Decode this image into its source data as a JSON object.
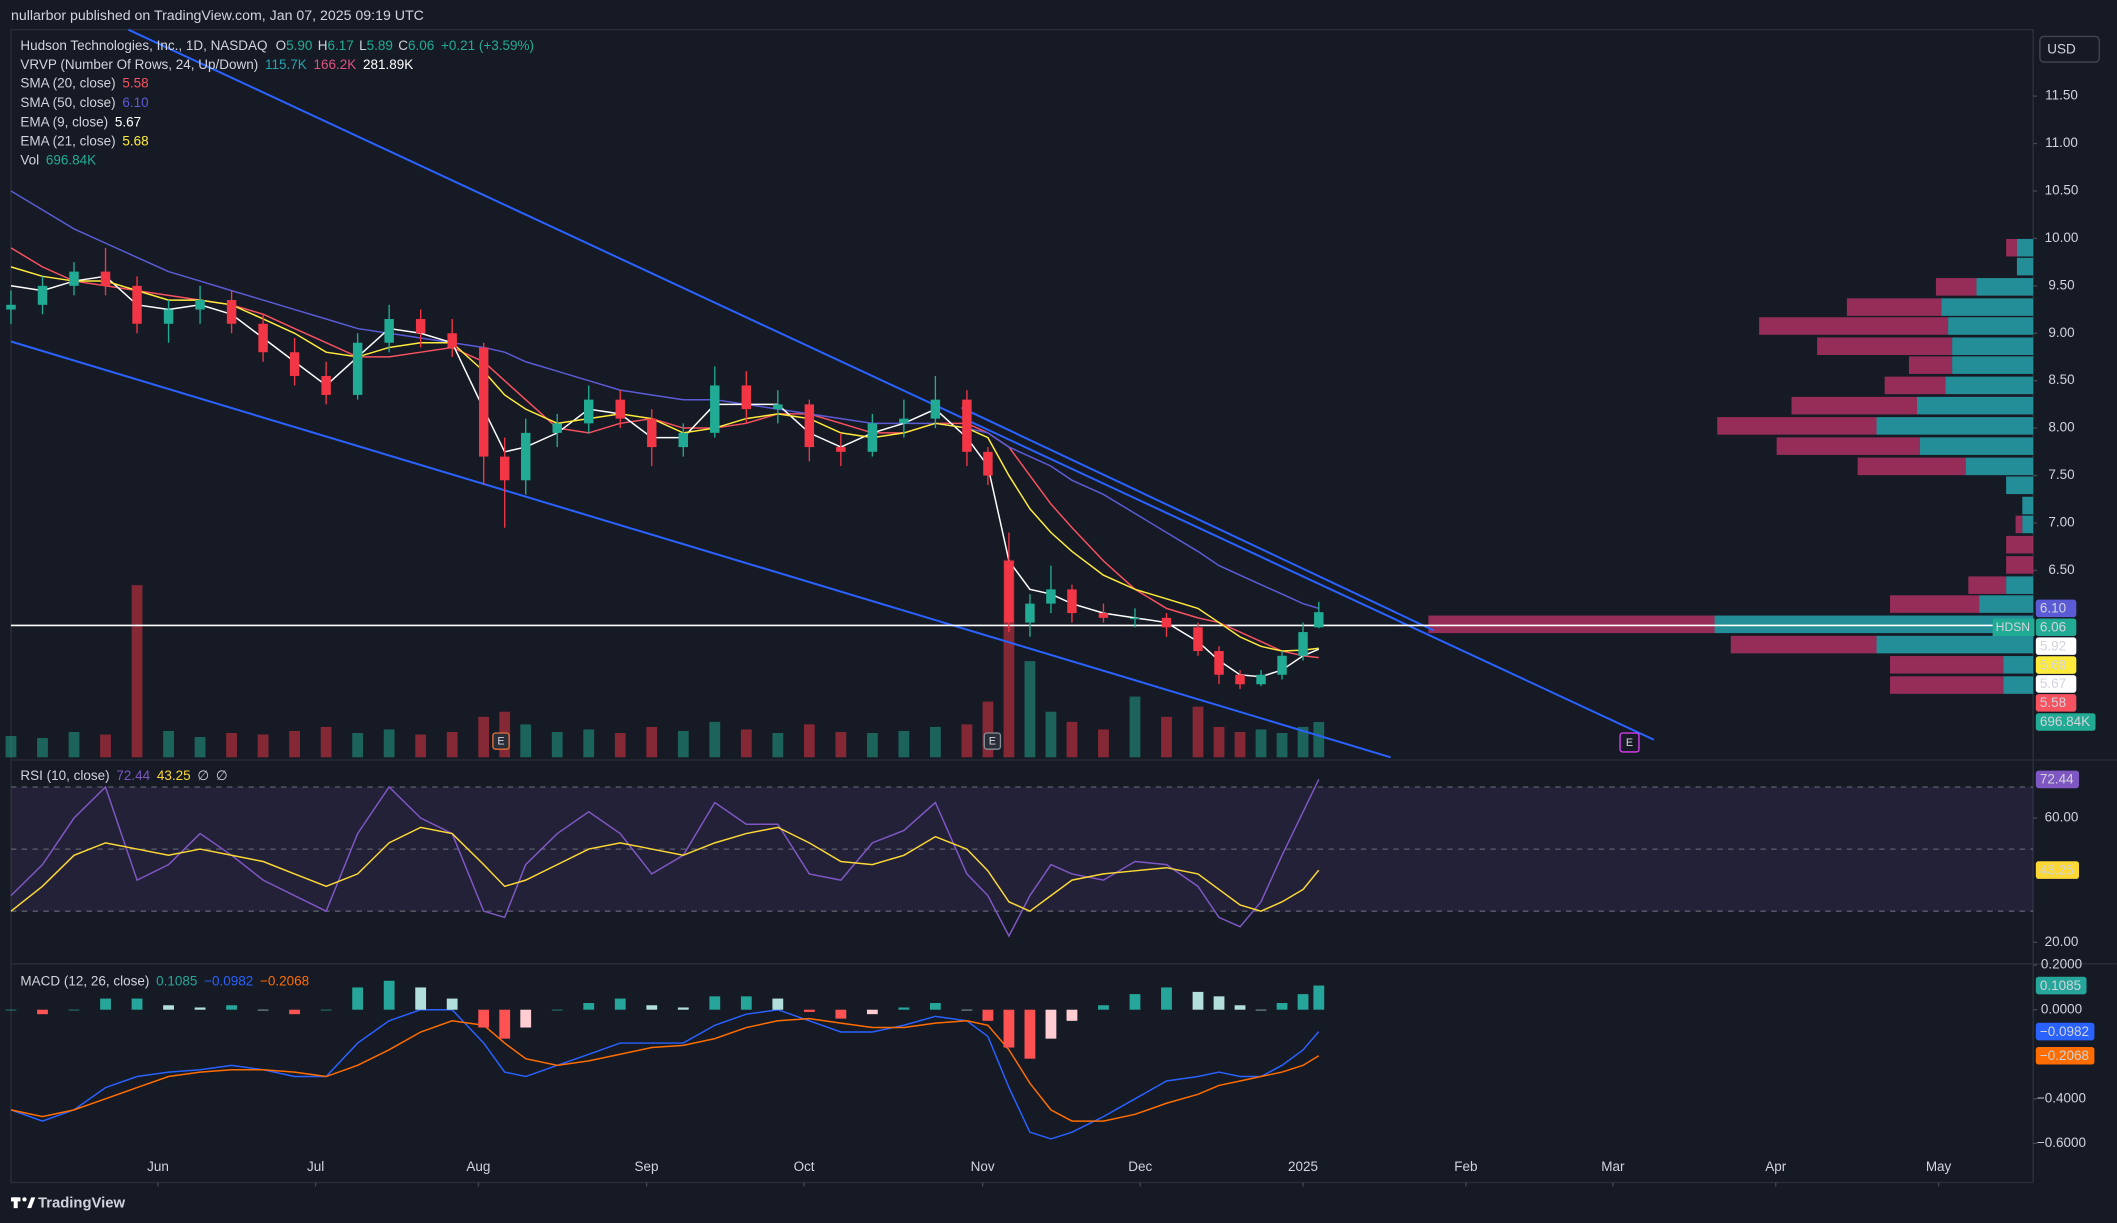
{
  "header": {
    "publisher": "nullarbor published on TradingView.com, Jan 07, 2025 09:19 UTC"
  },
  "footer": {
    "brand": "TradingView"
  },
  "chart_data": {
    "type": "candlestick",
    "symbol": "Hudson Technologies, Inc., 1D, NASDAQ",
    "ticker": "HDSN",
    "currency": "USD",
    "earnings_marker": "E",
    "ohlc_legend": [
      {
        "label": "O",
        "value": "5.90"
      },
      {
        "label": "H",
        "value": "6.17"
      },
      {
        "label": "L",
        "value": "5.89"
      },
      {
        "label": "C",
        "value": "6.06"
      }
    ],
    "change": "+0.21 (+3.59%)",
    "vrvp": {
      "name": "VRVP (Number Of Rows, 24, Up/Down)",
      "legend_values": [
        "115.7K",
        "166.2K",
        "281.89K"
      ]
    },
    "up_color": "#22ab94",
    "down_color": "#f23645",
    "x": [
      0,
      6,
      12,
      18,
      24,
      30,
      36,
      42,
      48,
      54,
      60,
      66,
      72,
      78,
      84,
      90,
      94,
      98,
      104,
      110,
      116,
      122,
      128,
      134,
      140,
      146,
      152,
      158,
      164,
      170,
      176,
      182,
      186,
      190,
      194,
      198,
      202,
      208,
      214,
      220,
      226,
      230,
      234,
      238,
      242,
      246,
      249
    ],
    "xlim": [
      0,
      385
    ],
    "xticks": [
      {
        "value": 28,
        "label": "Jun"
      },
      {
        "value": 58,
        "label": "Jul"
      },
      {
        "value": 89,
        "label": "Aug"
      },
      {
        "value": 121,
        "label": "Sep"
      },
      {
        "value": 151,
        "label": "Oct"
      },
      {
        "value": 185,
        "label": "Nov"
      },
      {
        "value": 215,
        "label": "Dec"
      },
      {
        "value": 246,
        "label": "2025"
      },
      {
        "value": 277,
        "label": "Feb"
      },
      {
        "value": 305,
        "label": "Mar"
      },
      {
        "value": 336,
        "label": "Apr"
      },
      {
        "value": 367,
        "label": "May"
      }
    ],
    "ylim": [
      4.53,
      12.2
    ],
    "yticks": [
      {
        "value": 6.5,
        "label": "6.50"
      },
      {
        "value": 7,
        "label": "7.00"
      },
      {
        "value": 7.5,
        "label": "7.50"
      },
      {
        "value": 8,
        "label": "8.00"
      },
      {
        "value": 8.5,
        "label": "8.50"
      },
      {
        "value": 9,
        "label": "9.00"
      },
      {
        "value": 9.5,
        "label": "9.50"
      },
      {
        "value": 10,
        "label": "10.00"
      },
      {
        "value": 10.5,
        "label": "10.50"
      },
      {
        "value": 11,
        "label": "11.00"
      },
      {
        "value": 11.5,
        "label": "11.50"
      }
    ],
    "hline": 5.92,
    "candles": {
      "open": [
        9.25,
        9.3,
        9.5,
        9.65,
        9.5,
        9.1,
        9.25,
        9.35,
        9.1,
        8.8,
        8.55,
        8.35,
        8.9,
        9.15,
        9.0,
        8.85,
        7.7,
        7.45,
        7.95,
        8.05,
        8.3,
        8.1,
        7.8,
        7.95,
        8.45,
        8.2,
        8.25,
        7.8,
        7.75,
        8.05,
        8.1,
        8.3,
        7.75,
        6.6,
        5.95,
        6.15,
        6.3,
        6.05,
        6.0,
        6.0,
        5.9,
        5.65,
        5.4,
        5.3,
        5.4,
        5.6,
        5.9
      ],
      "high": [
        9.45,
        9.6,
        9.75,
        9.9,
        9.6,
        9.35,
        9.5,
        9.45,
        9.2,
        8.95,
        8.7,
        9.0,
        9.3,
        9.25,
        9.15,
        8.9,
        7.9,
        8.1,
        8.15,
        8.45,
        8.4,
        8.2,
        8.05,
        8.65,
        8.6,
        8.4,
        8.3,
        7.95,
        8.15,
        8.3,
        8.55,
        8.4,
        7.8,
        6.9,
        6.25,
        6.55,
        6.35,
        6.15,
        6.1,
        6.05,
        5.95,
        5.7,
        5.45,
        5.45,
        5.65,
        5.95,
        6.17
      ],
      "low": [
        9.1,
        9.2,
        9.4,
        9.4,
        9.0,
        8.9,
        9.1,
        9.0,
        8.7,
        8.45,
        8.25,
        8.3,
        8.8,
        8.85,
        8.75,
        7.4,
        6.95,
        7.3,
        7.8,
        7.95,
        8.0,
        7.6,
        7.7,
        7.9,
        8.05,
        8.05,
        7.65,
        7.6,
        7.7,
        7.9,
        8.0,
        7.6,
        7.4,
        5.85,
        5.8,
        6.05,
        5.95,
        5.95,
        5.9,
        5.8,
        5.6,
        5.3,
        5.25,
        5.28,
        5.35,
        5.55,
        5.89
      ],
      "close": [
        9.3,
        9.5,
        9.65,
        9.5,
        9.1,
        9.25,
        9.35,
        9.1,
        8.8,
        8.55,
        8.35,
        8.9,
        9.15,
        9.0,
        8.85,
        7.7,
        7.45,
        7.95,
        8.05,
        8.3,
        8.1,
        7.8,
        7.95,
        8.45,
        8.2,
        8.25,
        7.8,
        7.75,
        8.05,
        8.1,
        8.3,
        7.75,
        7.5,
        5.95,
        6.15,
        6.3,
        6.05,
        6.0,
        6.0,
        5.9,
        5.65,
        5.4,
        5.3,
        5.4,
        5.6,
        5.85,
        6.06
      ]
    },
    "volume": {
      "name": "Vol",
      "last_label": "696.84K",
      "ylim": [
        0,
        4000000
      ],
      "values": [
        420000,
        380000,
        500000,
        450000,
        3400000,
        520000,
        400000,
        480000,
        450000,
        520000,
        600000,
        480000,
        550000,
        450000,
        500000,
        800000,
        900000,
        650000,
        500000,
        550000,
        480000,
        600000,
        520000,
        700000,
        550000,
        480000,
        650000,
        500000,
        480000,
        520000,
        600000,
        650000,
        1100000,
        3900000,
        1900000,
        900000,
        700000,
        550000,
        1200000,
        800000,
        1000000,
        600000,
        500000,
        550000,
        480000,
        600000,
        696840
      ]
    },
    "series": [
      {
        "name": "SMA (20, close)",
        "color": "#f7525f",
        "last_label": "5.58",
        "values": [
          9.9,
          9.7,
          9.55,
          9.5,
          9.45,
          9.4,
          9.35,
          9.3,
          9.2,
          9.05,
          8.9,
          8.75,
          8.75,
          8.8,
          8.85,
          8.7,
          8.5,
          8.3,
          8.0,
          7.95,
          8.05,
          8.1,
          8.0,
          8.0,
          8.05,
          8.15,
          8.15,
          8.05,
          7.95,
          7.95,
          8.05,
          8.05,
          7.95,
          7.8,
          7.5,
          7.2,
          6.95,
          6.6,
          6.3,
          6.1,
          6.0,
          5.95,
          5.85,
          5.75,
          5.65,
          5.6,
          5.58
        ]
      },
      {
        "name": "SMA (50, close)",
        "color": "#5b5bd6",
        "last_label": "6.10",
        "values": [
          10.5,
          10.3,
          10.1,
          9.95,
          9.8,
          9.65,
          9.55,
          9.45,
          9.35,
          9.25,
          9.15,
          9.05,
          9.0,
          8.95,
          8.9,
          8.85,
          8.8,
          8.7,
          8.6,
          8.5,
          8.4,
          8.35,
          8.3,
          8.3,
          8.25,
          8.2,
          8.15,
          8.1,
          8.05,
          8.05,
          8.05,
          8.0,
          7.95,
          7.8,
          7.7,
          7.6,
          7.45,
          7.3,
          7.1,
          6.9,
          6.7,
          6.55,
          6.45,
          6.35,
          6.25,
          6.15,
          6.1
        ]
      },
      {
        "name": "EMA (9, close)",
        "color": "#ffffff",
        "last_label": "5.67",
        "values": [
          9.5,
          9.45,
          9.55,
          9.6,
          9.3,
          9.25,
          9.3,
          9.2,
          8.95,
          8.7,
          8.45,
          8.75,
          9.05,
          9.0,
          8.9,
          8.2,
          7.75,
          7.8,
          7.95,
          8.2,
          8.15,
          7.9,
          7.9,
          8.25,
          8.25,
          8.25,
          7.95,
          7.8,
          7.95,
          8.05,
          8.2,
          7.9,
          7.6,
          6.6,
          6.3,
          6.25,
          6.15,
          6.05,
          6.0,
          5.95,
          5.75,
          5.55,
          5.4,
          5.38,
          5.45,
          5.6,
          5.67
        ]
      },
      {
        "name": "EMA (21, close)",
        "color": "#ffeb3b",
        "last_label": "5.68",
        "values": [
          9.7,
          9.6,
          9.55,
          9.55,
          9.45,
          9.35,
          9.35,
          9.3,
          9.15,
          9.0,
          8.8,
          8.75,
          8.85,
          8.9,
          8.9,
          8.6,
          8.35,
          8.2,
          8.05,
          8.1,
          8.15,
          8.1,
          7.95,
          8.0,
          8.1,
          8.15,
          8.1,
          7.95,
          7.9,
          7.95,
          8.05,
          8.0,
          7.9,
          7.5,
          7.15,
          6.9,
          6.7,
          6.45,
          6.3,
          6.2,
          6.1,
          5.95,
          5.8,
          5.7,
          5.65,
          5.66,
          5.68
        ]
      }
    ],
    "rsi": {
      "title": "RSI (10, close)",
      "extra": [
        "∅",
        "∅"
      ],
      "ylim": [
        13.5,
        78.7
      ],
      "yticks": [
        {
          "value": 60,
          "label": "60.00"
        },
        {
          "value": 20,
          "label": "20.00"
        }
      ],
      "levels": [
        70,
        50,
        30
      ],
      "series": [
        {
          "name": "RSI",
          "color": "#7e57c2",
          "last_label": "72.44",
          "values": [
            35,
            45,
            60,
            70,
            40,
            45,
            55,
            48,
            40,
            35,
            30,
            55,
            70,
            60,
            55,
            30,
            28,
            45,
            55,
            62,
            55,
            42,
            48,
            65,
            58,
            58,
            42,
            40,
            52,
            56,
            65,
            42,
            35,
            22,
            35,
            45,
            42,
            40,
            46,
            45,
            38,
            28,
            25,
            33,
            48,
            62,
            72.44
          ]
        },
        {
          "name": "RSI-based MA",
          "color": "#fdd835",
          "last_label": "43.25",
          "values": [
            30,
            38,
            48,
            52,
            50,
            48,
            50,
            48,
            46,
            42,
            38,
            42,
            52,
            57,
            55,
            45,
            38,
            40,
            45,
            50,
            52,
            50,
            48,
            52,
            55,
            57,
            52,
            46,
            45,
            48,
            54,
            50,
            43,
            33,
            30,
            35,
            40,
            42,
            43,
            44,
            42,
            37,
            32,
            30,
            33,
            37,
            43.25
          ]
        }
      ]
    },
    "macd": {
      "title": "MACD (12, 26, close)",
      "ylim": [
        -0.776,
        0.2
      ],
      "yticks": [
        {
          "value": 0.2,
          "label": "0.2000"
        },
        {
          "value": 0,
          "label": "0.0000"
        },
        {
          "value": -0.4,
          "label": "−0.4000"
        },
        {
          "value": -0.6,
          "label": "−0.6000"
        }
      ],
      "series": [
        {
          "name": "Histogram",
          "type": "bar",
          "colors": [
            "#26a69a",
            "#b2dfdb",
            "#ffcdd2",
            "#ff5252"
          ],
          "last_label": "0.1085",
          "values": [
            0,
            -0.02,
            0,
            0.05,
            0.05,
            0.02,
            0.01,
            0.02,
            0,
            -0.02,
            0,
            0.1,
            0.13,
            0.1,
            0.05,
            -0.08,
            -0.13,
            -0.08,
            0,
            0.03,
            0.05,
            0.02,
            0.01,
            0.06,
            0.06,
            0.05,
            -0.01,
            -0.04,
            -0.02,
            0.01,
            0.03,
            0,
            -0.05,
            -0.17,
            -0.22,
            -0.13,
            -0.05,
            0.02,
            0.07,
            0.1,
            0.08,
            0.06,
            0.02,
            0,
            0.03,
            0.07,
            0.1085
          ]
        },
        {
          "name": "MACD",
          "type": "line",
          "color": "#2962ff",
          "last_label": "−0.0982",
          "values": [
            -0.45,
            -0.5,
            -0.45,
            -0.35,
            -0.3,
            -0.28,
            -0.27,
            -0.25,
            -0.27,
            -0.3,
            -0.3,
            -0.15,
            -0.05,
            0,
            0,
            -0.15,
            -0.28,
            -0.3,
            -0.25,
            -0.2,
            -0.15,
            -0.15,
            -0.15,
            -0.07,
            -0.02,
            0,
            -0.05,
            -0.1,
            -0.1,
            -0.07,
            -0.03,
            -0.05,
            -0.12,
            -0.35,
            -0.55,
            -0.58,
            -0.55,
            -0.48,
            -0.4,
            -0.32,
            -0.3,
            -0.28,
            -0.3,
            -0.3,
            -0.25,
            -0.18,
            -0.0982
          ]
        },
        {
          "name": "Signal",
          "type": "line",
          "color": "#ff6d00",
          "last_label": "−0.2068",
          "values": [
            -0.45,
            -0.48,
            -0.45,
            -0.4,
            -0.35,
            -0.3,
            -0.28,
            -0.27,
            -0.27,
            -0.28,
            -0.3,
            -0.25,
            -0.18,
            -0.1,
            -0.05,
            -0.07,
            -0.15,
            -0.22,
            -0.25,
            -0.23,
            -0.2,
            -0.17,
            -0.16,
            -0.13,
            -0.08,
            -0.05,
            -0.04,
            -0.06,
            -0.08,
            -0.08,
            -0.06,
            -0.05,
            -0.07,
            -0.18,
            -0.33,
            -0.45,
            -0.5,
            -0.5,
            -0.47,
            -0.42,
            -0.38,
            -0.34,
            -0.32,
            -0.3,
            -0.28,
            -0.25,
            -0.2068
          ]
        }
      ]
    }
  }
}
